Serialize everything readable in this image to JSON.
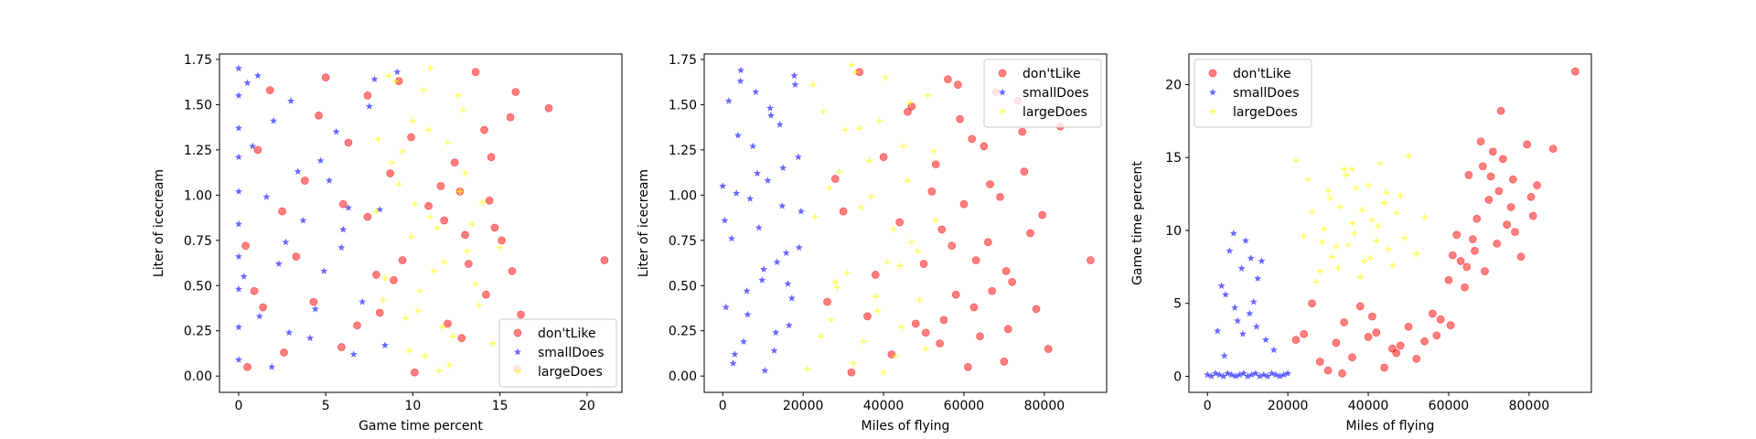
{
  "chart_data": [
    {
      "type": "scatter",
      "xlabel": "Game time percent",
      "ylabel": "Liter of icecream",
      "xlim": [
        -1.1,
        22
      ],
      "ylim": [
        -0.09,
        1.78
      ],
      "xticks": [
        0,
        5,
        10,
        15,
        20
      ],
      "xtick_labels": [
        "0",
        "5",
        "10",
        "15",
        "20"
      ],
      "yticks": [
        0.0,
        0.25,
        0.5,
        0.75,
        1.0,
        1.25,
        1.5,
        1.75
      ],
      "ytick_labels": [
        "0.00",
        "0.25",
        "0.50",
        "0.75",
        "1.00",
        "1.25",
        "1.50",
        "1.75"
      ],
      "legend_position": "bottom-right",
      "series": [
        {
          "name": "don'tLike",
          "marker": "circle",
          "color": "#ff0000",
          "x": [
            15.9,
            17.8,
            21.0,
            13.6,
            14.1,
            14.5,
            14.4,
            14.2,
            15.7,
            16.2,
            16.0,
            15.6,
            14.7,
            15.1,
            13.2,
            12.8,
            11.8,
            9.2,
            8.7,
            8.9,
            7.4,
            6.8,
            5.0,
            6.0,
            4.6,
            3.3,
            2.6,
            3.8,
            1.8,
            1.4,
            0.4,
            1.1,
            0.5,
            0.9,
            7.4,
            5.9,
            6.3,
            4.3,
            2.5,
            12.4,
            11.6,
            10.1,
            9.4,
            10.9,
            8.1,
            12.0,
            12.7,
            13.0,
            9.9,
            7.9
          ],
          "y": [
            1.57,
            1.48,
            0.64,
            1.68,
            1.36,
            1.21,
            0.97,
            0.45,
            0.58,
            0.34,
            0.04,
            1.43,
            0.82,
            0.75,
            0.62,
            0.21,
            0.86,
            1.63,
            1.12,
            0.53,
            1.55,
            0.28,
            1.65,
            0.95,
            1.44,
            0.66,
            0.13,
            1.08,
            1.58,
            0.38,
            0.72,
            1.25,
            0.05,
            0.47,
            0.88,
            0.16,
            1.29,
            0.41,
            0.91,
            1.18,
            1.05,
            0.02,
            0.64,
            0.94,
            0.35,
            0.29,
            1.02,
            0.78,
            1.32,
            0.56
          ]
        },
        {
          "name": "smallDoes",
          "marker": "star",
          "color": "#0000ff",
          "x": [
            0.0,
            0.0,
            0.0,
            0.0,
            0.0,
            0.0,
            0.0,
            0.0,
            0.0,
            0.0,
            0.5,
            1.2,
            2.0,
            2.7,
            3.4,
            4.1,
            4.9,
            5.6,
            6.3,
            7.1,
            7.8,
            8.4,
            1.6,
            3.0,
            4.4,
            5.2,
            6.6,
            2.3,
            0.8,
            9.1,
            3.7,
            1.9,
            5.9,
            7.5,
            0.3,
            2.9,
            4.7,
            6.0,
            1.1,
            8.1
          ],
          "y": [
            1.7,
            1.55,
            1.37,
            1.21,
            1.02,
            0.84,
            0.66,
            0.48,
            0.27,
            0.09,
            1.62,
            0.33,
            1.41,
            0.74,
            1.13,
            0.21,
            0.58,
            1.35,
            0.93,
            0.41,
            1.64,
            0.17,
            0.99,
            1.52,
            0.37,
            1.08,
            0.12,
            0.62,
            1.27,
            1.68,
            0.86,
            0.05,
            0.71,
            1.49,
            0.55,
            0.24,
            1.19,
            0.81,
            1.66,
            0.92
          ]
        },
        {
          "name": "largeDoes",
          "marker": "plus",
          "color": "#ffff00",
          "x": [
            9.0,
            10.0,
            11.0,
            12.0,
            13.0,
            14.0,
            15.0,
            8.4,
            9.6,
            10.7,
            11.5,
            12.6,
            13.4,
            9.2,
            10.4,
            11.8,
            12.3,
            8.8,
            13.8,
            7.9,
            10.9,
            9.9,
            11.2,
            12.9,
            8.6,
            14.6,
            10.1,
            11.7,
            9.4,
            12.1,
            13.1,
            8.3,
            10.6,
            11.4,
            9.8,
            12.7,
            13.6,
            8.0,
            10.3,
            11.0
          ],
          "y": [
            1.63,
            1.41,
            1.7,
            1.29,
            1.12,
            0.96,
            0.71,
            0.54,
            0.32,
            0.11,
            0.03,
            1.55,
            0.84,
            1.06,
            0.47,
            0.63,
            0.22,
            1.18,
            0.39,
            0.91,
            1.36,
            0.77,
            0.58,
            1.47,
            1.66,
            0.18,
            0.95,
            0.27,
            1.24,
            0.06,
            0.69,
            0.42,
            1.58,
            0.82,
            0.14,
            1.02,
            0.51,
            1.31,
            0.36,
            0.88
          ]
        }
      ]
    },
    {
      "type": "scatter",
      "xlabel": "Miles of flying",
      "ylabel": "Liter of icecream",
      "xlim": [
        -4600,
        95500
      ],
      "ylim": [
        -0.09,
        1.78
      ],
      "xticks": [
        0,
        20000,
        40000,
        60000,
        80000
      ],
      "xtick_labels": [
        "0",
        "20000",
        "40000",
        "60000",
        "80000"
      ],
      "yticks": [
        0.0,
        0.25,
        0.5,
        0.75,
        1.0,
        1.25,
        1.5,
        1.75
      ],
      "ytick_labels": [
        "0.00",
        "0.25",
        "0.50",
        "0.75",
        "1.00",
        "1.25",
        "1.50",
        "1.75"
      ],
      "legend_position": "top-right",
      "series": [
        {
          "name": "don'tLike",
          "marker": "circle",
          "color": "#ff0000",
          "x": [
            91500,
            84000,
            78000,
            75000,
            72000,
            70000,
            68000,
            66000,
            64000,
            62000,
            60000,
            58000,
            56000,
            54000,
            52000,
            50000,
            48000,
            46000,
            44000,
            42000,
            40000,
            38000,
            36000,
            34000,
            32000,
            30000,
            28000,
            26000,
            76500,
            73500,
            71000,
            69000,
            67000,
            65000,
            63000,
            61000,
            59000,
            57000,
            55000,
            53000,
            79500,
            81000,
            74500,
            70500,
            66500,
            62500,
            58500,
            54500,
            50500,
            47000
          ],
          "y": [
            0.64,
            1.38,
            0.37,
            1.13,
            0.52,
            0.08,
            1.57,
            0.74,
            0.22,
            1.31,
            0.95,
            0.45,
            1.64,
            0.18,
            1.02,
            0.62,
            0.29,
            1.46,
            0.85,
            0.12,
            1.21,
            0.56,
            0.33,
            1.68,
            0.02,
            0.91,
            1.09,
            0.41,
            0.79,
            1.52,
            0.26,
            0.99,
            0.47,
            1.27,
            0.64,
            0.05,
            1.42,
            0.72,
            0.31,
            1.17,
            0.89,
            0.15,
            1.35,
            0.58,
            1.06,
            0.38,
            1.61,
            0.81,
            0.24,
            1.49
          ]
        },
        {
          "name": "smallDoes",
          "marker": "star",
          "color": "#0000ff",
          "x": [
            0,
            1500,
            3000,
            4500,
            6000,
            7500,
            9000,
            10500,
            12000,
            13500,
            15000,
            16500,
            18000,
            19500,
            800,
            2200,
            3800,
            5200,
            6800,
            8200,
            9800,
            11200,
            12800,
            14200,
            15800,
            17200,
            18800,
            500,
            2600,
            4400,
            6200,
            8600,
            10200,
            11800,
            13200,
            14800,
            16200,
            17800,
            19000,
            3400
          ],
          "y": [
            1.05,
            1.52,
            0.12,
            1.69,
            0.47,
            1.27,
            0.82,
            0.03,
            1.44,
            0.63,
            1.15,
            0.28,
            1.61,
            0.91,
            0.38,
            0.76,
            1.33,
            0.19,
            0.98,
            1.57,
            0.53,
            1.08,
            0.14,
            1.39,
            0.68,
            0.43,
            1.21,
            0.86,
            0.07,
            1.63,
            0.34,
            1.12,
            0.59,
            1.48,
            0.24,
            0.94,
            0.51,
            1.66,
            0.71,
            1.01
          ]
        },
        {
          "name": "largeDoes",
          "marker": "plus",
          "color": "#ffff00",
          "x": [
            21000,
            23000,
            25000,
            27000,
            29000,
            31000,
            33000,
            35000,
            37000,
            39000,
            41000,
            43000,
            45000,
            47000,
            49000,
            51000,
            53000,
            22500,
            24500,
            26500,
            28500,
            30500,
            32500,
            34500,
            36500,
            38500,
            40500,
            42500,
            44500,
            46500,
            48500,
            50500,
            52500,
            28000,
            34000,
            40000,
            46000,
            32000,
            38000,
            44000
          ],
          "y": [
            0.04,
            0.88,
            1.46,
            0.31,
            1.13,
            0.57,
            1.68,
            0.19,
            0.99,
            1.41,
            0.63,
            0.11,
            1.27,
            0.74,
            0.42,
            1.55,
            0.86,
            1.61,
            0.22,
            1.04,
            0.49,
            1.36,
            0.07,
            0.93,
            1.19,
            0.36,
            1.65,
            0.81,
            0.27,
            1.51,
            0.69,
            0.15,
            1.24,
            0.52,
            1.37,
            0.02,
            1.08,
            1.72,
            0.44,
            0.61
          ]
        }
      ]
    },
    {
      "type": "scatter",
      "xlabel": "Miles of flying",
      "ylabel": "Game time percent",
      "xlim": [
        -4600,
        95500
      ],
      "ylim": [
        -1.1,
        22.1
      ],
      "xticks": [
        0,
        20000,
        40000,
        60000,
        80000
      ],
      "xtick_labels": [
        "0",
        "20000",
        "40000",
        "60000",
        "80000"
      ],
      "yticks": [
        0,
        5,
        10,
        15,
        20
      ],
      "ytick_labels": [
        "0",
        "5",
        "10",
        "15",
        "20"
      ],
      "legend_position": "top-left",
      "series": [
        {
          "name": "don'tLike",
          "marker": "circle",
          "color": "#ff0000",
          "x": [
            91500,
            86000,
            82000,
            81000,
            79500,
            78000,
            76000,
            74500,
            73000,
            72000,
            71000,
            70000,
            69000,
            68000,
            67000,
            66000,
            65000,
            64000,
            63000,
            62000,
            61000,
            60000,
            58000,
            56000,
            54000,
            52000,
            50000,
            48000,
            46000,
            44000,
            42000,
            40000,
            38000,
            36000,
            34000,
            32000,
            30000,
            28000,
            26000,
            24000,
            22000,
            70500,
            72500,
            75500,
            68500,
            66500,
            64500,
            76500,
            80500,
            73500,
            60500,
            57000,
            47000,
            41000,
            33500
          ],
          "y": [
            20.9,
            15.6,
            13.1,
            11.0,
            15.9,
            8.2,
            13.5,
            10.4,
            18.2,
            9.1,
            15.4,
            12.1,
            7.2,
            16.1,
            10.8,
            9.4,
            13.8,
            6.1,
            7.9,
            9.7,
            8.3,
            6.6,
            3.9,
            4.3,
            2.4,
            1.2,
            3.4,
            2.1,
            1.9,
            0.6,
            3.0,
            2.7,
            4.8,
            1.3,
            3.7,
            2.3,
            0.4,
            1.0,
            5.0,
            2.9,
            2.5,
            13.7,
            12.7,
            11.6,
            14.4,
            8.6,
            7.5,
            9.9,
            12.3,
            14.9,
            3.5,
            2.8,
            1.6,
            4.1,
            0.2
          ]
        },
        {
          "name": "smallDoes",
          "marker": "star",
          "color": "#0000ff",
          "x": [
            0,
            1000,
            2000,
            3000,
            4000,
            5000,
            6000,
            7000,
            8000,
            9000,
            10000,
            11000,
            12000,
            13000,
            14000,
            15000,
            16000,
            17000,
            18000,
            19000,
            20000,
            2500,
            4500,
            6500,
            8500,
            10500,
            12500,
            14500,
            16500,
            3500,
            5500,
            7500,
            9500,
            11500,
            13500,
            6800,
            8800,
            4200,
            10800,
            12200
          ],
          "y": [
            0.1,
            0.0,
            0.2,
            0.1,
            0.0,
            0.2,
            0.1,
            0.0,
            0.1,
            0.2,
            0.0,
            0.1,
            0.2,
            0.0,
            0.1,
            0.0,
            0.2,
            0.1,
            0.0,
            0.1,
            0.2,
            3.1,
            5.6,
            9.8,
            7.4,
            4.3,
            6.7,
            2.5,
            1.8,
            6.2,
            8.6,
            3.8,
            9.3,
            5.1,
            7.9,
            4.7,
            2.9,
            1.4,
            8.1,
            3.4
          ]
        },
        {
          "name": "largeDoes",
          "marker": "plus",
          "color": "#ffff00",
          "x": [
            22000,
            24000,
            26000,
            28000,
            30000,
            32000,
            34000,
            36000,
            38000,
            40000,
            42000,
            44000,
            46000,
            48000,
            50000,
            52000,
            54000,
            25000,
            27000,
            29000,
            31000,
            33000,
            35000,
            37000,
            39000,
            41000,
            43000,
            45000,
            47000,
            49000,
            30500,
            32500,
            34500,
            36500,
            38500,
            40500,
            42500,
            36000,
            28500,
            44500
          ],
          "y": [
            14.8,
            9.6,
            11.3,
            7.2,
            12.7,
            8.9,
            14.2,
            10.5,
            6.8,
            13.1,
            9.3,
            11.9,
            7.6,
            12.4,
            15.1,
            8.4,
            10.9,
            13.5,
            6.5,
            10.1,
            8.2,
            11.6,
            9.0,
            12.9,
            7.9,
            10.7,
            14.6,
            8.7,
            11.2,
            9.5,
            12.2,
            7.4,
            13.8,
            9.8,
            11.4,
            8.1,
            10.3,
            14.2,
            9.2,
            12.6
          ]
        }
      ]
    }
  ]
}
